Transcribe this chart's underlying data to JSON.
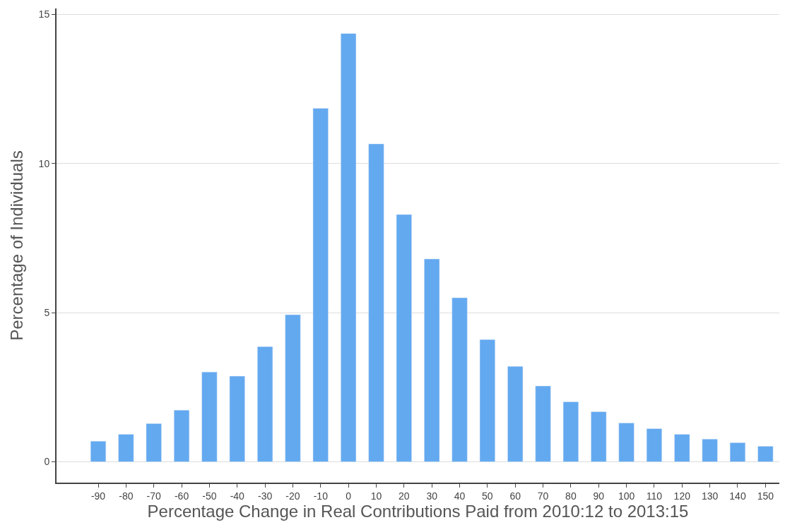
{
  "chart_data": {
    "type": "bar",
    "xlabel": "Percentage Change in Real Contributions Paid from 2010:12 to 2013:15",
    "ylabel": "Percentage of Individuals",
    "categories": [
      "-90",
      "-80",
      "-70",
      "-60",
      "-50",
      "-40",
      "-30",
      "-20",
      "-10",
      "0",
      "10",
      "20",
      "30",
      "40",
      "50",
      "60",
      "70",
      "80",
      "90",
      "100",
      "110",
      "120",
      "130",
      "140",
      "150"
    ],
    "values": [
      0.69,
      0.92,
      1.28,
      1.73,
      3.01,
      2.87,
      3.86,
      4.93,
      11.85,
      14.36,
      10.66,
      8.29,
      6.8,
      5.5,
      4.1,
      3.2,
      2.54,
      2.01,
      1.68,
      1.3,
      1.11,
      0.92,
      0.76,
      0.64,
      0.52
    ],
    "color": "#63a9f0",
    "ylim": [
      -0.7,
      15.2
    ],
    "yticks": [
      0,
      5,
      10,
      15
    ],
    "grid": "y"
  }
}
